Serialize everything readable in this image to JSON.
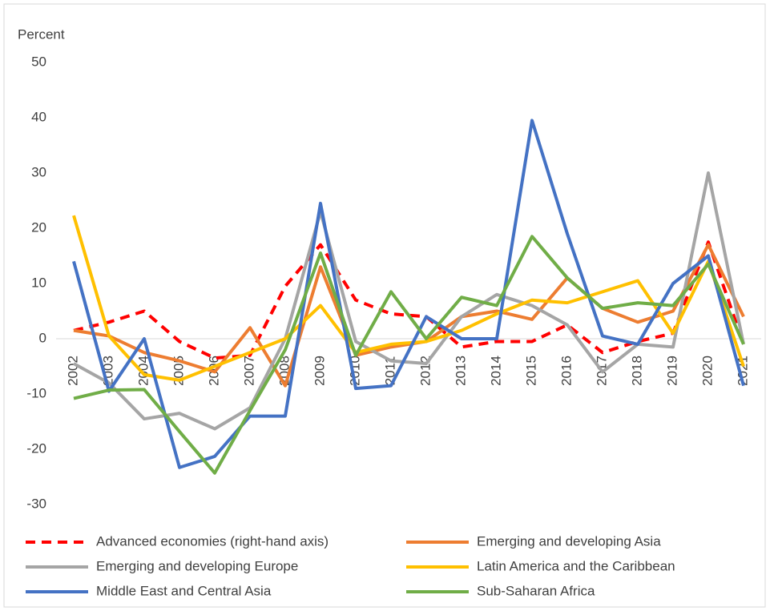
{
  "chart_data": {
    "type": "line",
    "y_label": "Percent",
    "categories": [
      "2002",
      "2003",
      "2004",
      "2005",
      "2006",
      "2007",
      "2008",
      "2009",
      "2010",
      "2011",
      "2012",
      "2013",
      "2014",
      "2015",
      "2016",
      "2017",
      "2018",
      "2019",
      "2020",
      "2021"
    ],
    "series": [
      {
        "name": "Advanced economies (right-hand axis)",
        "color": "#ff0000",
        "dashed": true,
        "values": [
          1.5,
          3,
          5,
          -0.5,
          -3.5,
          -3,
          9.5,
          17,
          7,
          4.5,
          4,
          -1.5,
          -0.5,
          -0.5,
          2.5,
          -2.5,
          -0.5,
          1,
          17.5,
          -1
        ]
      },
      {
        "name": "Emerging and developing Asia",
        "color": "#ed7d31",
        "values": [
          1.5,
          0.5,
          -2.5,
          -4,
          -6,
          2,
          -8.5,
          13,
          -3,
          -1.5,
          -0.5,
          4,
          5,
          3.5,
          11,
          5.5,
          3,
          5,
          17,
          4
        ]
      },
      {
        "name": "Emerging and developing Europe",
        "color": "#a5a5a5",
        "values": [
          -4.5,
          -8,
          -14.5,
          -13.5,
          -16.3,
          -12.5,
          0,
          23,
          -0.5,
          -4,
          -4.5,
          4,
          8,
          6,
          2.5,
          -6,
          -1,
          -1.5,
          30,
          -1
        ]
      },
      {
        "name": "Latin America and the Caribbean",
        "color": "#ffc000",
        "values": [
          22.3,
          0.5,
          -6.5,
          -7.5,
          -5,
          -2.5,
          0,
          6,
          -2.5,
          -1,
          -0.5,
          1.5,
          4.5,
          7,
          6.5,
          8.5,
          10.5,
          1,
          14,
          -5
        ]
      },
      {
        "name": "Middle East and Central Asia",
        "color": "#4472c4",
        "values": [
          14,
          -9.5,
          0,
          -23.3,
          -21.3,
          -14,
          -14,
          24.5,
          -9,
          -8.5,
          4,
          0,
          0,
          39.5,
          19,
          0.5,
          -1,
          10,
          15,
          -8.5
        ]
      },
      {
        "name": "Sub-Saharan Africa",
        "color": "#70ad47",
        "values": [
          -10.8,
          -9.3,
          -9.2,
          -16.8,
          -24.3,
          -13,
          -2,
          15.5,
          -3,
          8.5,
          0,
          7.5,
          6,
          18.5,
          11,
          5.5,
          6.5,
          6,
          13.5,
          -1
        ]
      }
    ],
    "ylim": [
      -30,
      50
    ],
    "yticks": [
      -30,
      -20,
      -10,
      0,
      10,
      20,
      30,
      40,
      50
    ],
    "legend": "bottom"
  }
}
